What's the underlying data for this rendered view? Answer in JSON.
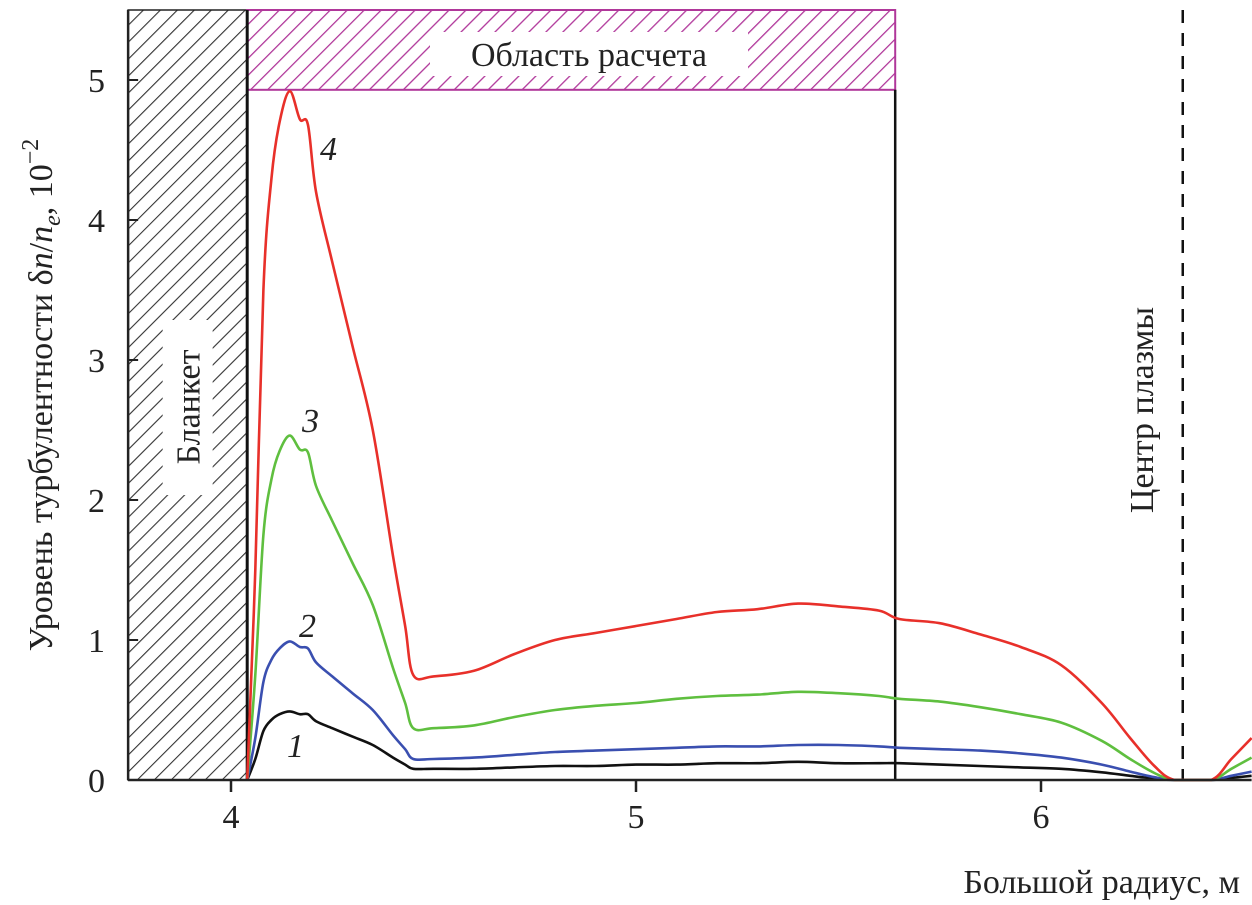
{
  "chart_data": {
    "type": "line",
    "title": "",
    "xlabel": "Большой радиус, м",
    "ylabel": "Уровень турбулентности δn/n_e, 10⁻²",
    "ylabel_main": "Уровень турбулентности δ",
    "ylabel_n1": "n",
    "ylabel_slash": "/",
    "ylabel_n2": "n",
    "ylabel_sub": "e",
    "ylabel_tail": ", 10",
    "ylabel_exp": "−2",
    "xlim": [
      3.746,
      6.52
    ],
    "ylim": [
      0,
      5.5
    ],
    "xticks": [
      4,
      5,
      6
    ],
    "xtick_labels": [
      "4",
      "5",
      "6"
    ],
    "yticks": [
      0,
      1,
      2,
      3,
      4,
      5
    ],
    "ytick_labels": [
      "0",
      "1",
      "2",
      "3",
      "4",
      "5"
    ],
    "grid": false,
    "regions": {
      "blanket": {
        "label": "Бланкет",
        "x_from": 3.746,
        "x_to": 4.04
      },
      "calc_area": {
        "label": "Область расчета",
        "x_from": 4.04,
        "x_to": 5.64,
        "y_from": 4.93,
        "y_to": 5.5,
        "color": "#b0379a"
      },
      "plasma_center": {
        "label": "Центр плазмы",
        "x": 6.35
      }
    },
    "x": [
      4.04,
      4.06,
      4.08,
      4.1,
      4.12,
      4.145,
      4.17,
      4.19,
      4.21,
      4.25,
      4.3,
      4.35,
      4.4,
      4.43,
      4.45,
      4.5,
      4.6,
      4.7,
      4.8,
      4.9,
      5.0,
      5.1,
      5.2,
      5.3,
      5.4,
      5.5,
      5.6,
      5.65,
      5.75,
      5.85,
      5.95,
      6.05,
      6.15,
      6.22,
      6.28,
      6.33,
      6.42,
      6.47,
      6.52
    ],
    "series": [
      {
        "name": "1",
        "label": "1",
        "color": "#111111",
        "values": [
          0,
          0.15,
          0.35,
          0.43,
          0.47,
          0.49,
          0.47,
          0.47,
          0.42,
          0.37,
          0.31,
          0.25,
          0.16,
          0.11,
          0.08,
          0.08,
          0.08,
          0.09,
          0.1,
          0.1,
          0.11,
          0.11,
          0.12,
          0.12,
          0.13,
          0.12,
          0.12,
          0.12,
          0.11,
          0.1,
          0.09,
          0.08,
          0.055,
          0.03,
          0.01,
          0,
          0,
          0.015,
          0.03
        ]
      },
      {
        "name": "2",
        "label": "2",
        "color": "#3a4fb0",
        "values": [
          0,
          0.3,
          0.7,
          0.86,
          0.94,
          0.99,
          0.95,
          0.94,
          0.84,
          0.74,
          0.62,
          0.5,
          0.32,
          0.22,
          0.15,
          0.15,
          0.16,
          0.18,
          0.2,
          0.21,
          0.22,
          0.23,
          0.24,
          0.24,
          0.25,
          0.25,
          0.24,
          0.23,
          0.22,
          0.21,
          0.19,
          0.16,
          0.11,
          0.06,
          0.02,
          0,
          0,
          0.03,
          0.06
        ]
      },
      {
        "name": "3",
        "label": "3",
        "color": "#5fbf3f",
        "values": [
          0,
          0.75,
          1.75,
          2.15,
          2.35,
          2.46,
          2.36,
          2.34,
          2.1,
          1.85,
          1.55,
          1.25,
          0.8,
          0.55,
          0.37,
          0.37,
          0.39,
          0.45,
          0.5,
          0.53,
          0.55,
          0.58,
          0.6,
          0.61,
          0.63,
          0.62,
          0.6,
          0.58,
          0.56,
          0.52,
          0.47,
          0.41,
          0.28,
          0.15,
          0.05,
          0,
          0,
          0.08,
          0.16
        ]
      },
      {
        "name": "4",
        "label": "4",
        "color": "#e8302a",
        "values": [
          0,
          1.5,
          3.5,
          4.3,
          4.7,
          4.92,
          4.72,
          4.68,
          4.2,
          3.7,
          3.1,
          2.5,
          1.6,
          1.1,
          0.75,
          0.74,
          0.78,
          0.9,
          1.0,
          1.05,
          1.1,
          1.15,
          1.2,
          1.22,
          1.26,
          1.24,
          1.21,
          1.15,
          1.12,
          1.04,
          0.95,
          0.82,
          0.55,
          0.3,
          0.1,
          0,
          0,
          0.15,
          0.3
        ]
      }
    ]
  }
}
